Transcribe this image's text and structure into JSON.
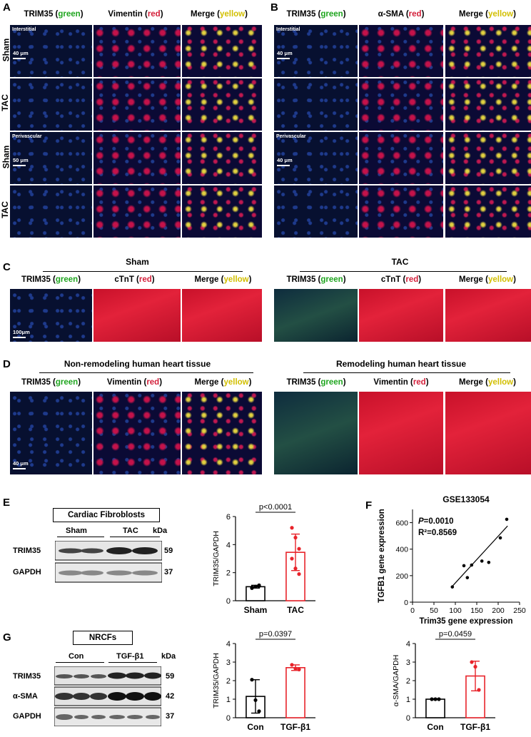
{
  "panels": {
    "A": {
      "letter": "A",
      "headers": [
        {
          "t1": "TRIM35 (",
          "t2": "green",
          "t3": ")"
        },
        {
          "t1": "Vimentin (",
          "t2": "red",
          "t3": ")"
        },
        {
          "t1": "Merge (",
          "t2": "yellow",
          "t3": ")"
        }
      ],
      "rows": [
        "Sham",
        "TAC",
        "Sham",
        "TAC"
      ],
      "inner": [
        "Interstitial",
        "Perivascular"
      ],
      "scales": [
        "40 μm",
        "50 μm"
      ]
    },
    "B": {
      "letter": "B",
      "headers": [
        {
          "t1": "TRIM35 (",
          "t2": "green",
          "t3": ")"
        },
        {
          "t1": "α-SMA (",
          "t2": "red",
          "t3": ")"
        },
        {
          "t1": "Merge (",
          "t2": "yellow",
          "t3": ")"
        }
      ],
      "inner": [
        "Interstitial",
        "Perivascular"
      ],
      "scales": [
        "40 μm",
        "40 μm"
      ]
    },
    "C": {
      "letter": "C",
      "groups": [
        "Sham",
        "TAC"
      ],
      "headers": [
        {
          "t1": "TRIM35 (",
          "t2": "green",
          "t3": ")"
        },
        {
          "t1": "cTnT (",
          "t2": "red",
          "t3": ")"
        },
        {
          "t1": "Merge (",
          "t2": "yellow",
          "t3": ")"
        }
      ],
      "scale": "100μm"
    },
    "D": {
      "letter": "D",
      "groups": [
        "Non-remodeling human heart tissue",
        "Remodeling human heart tissue"
      ],
      "headers": [
        {
          "t1": "TRIM35 (",
          "t2": "green",
          "t3": ")"
        },
        {
          "t1": "Vimentin (",
          "t2": "red",
          "t3": ")"
        },
        {
          "t1": "Merge (",
          "t2": "yellow",
          "t3": ")"
        }
      ],
      "scale": "40 μm"
    },
    "E": {
      "letter": "E",
      "box": "Cardiac Fibroblosts",
      "lanes": [
        "Sham",
        "TAC"
      ],
      "kda": "kDa",
      "bands": [
        {
          "name": "TRIM35",
          "kda": "59"
        },
        {
          "name": "GAPDH",
          "kda": "37"
        }
      ]
    },
    "F": {
      "letter": "F"
    },
    "G": {
      "letter": "G",
      "box": "NRCFs",
      "lanes": [
        "Con",
        "TGF-β1"
      ],
      "kda": "kDa",
      "bands": [
        {
          "name": "TRIM35",
          "kda": "59"
        },
        {
          "name": "α-SMA",
          "kda": "42"
        },
        {
          "name": "GAPDH",
          "kda": "37"
        }
      ]
    }
  },
  "chart_data": [
    {
      "type": "bar",
      "id": "E-bar",
      "categories": [
        "Sham",
        "TAC"
      ],
      "values": [
        1.0,
        3.45
      ],
      "errors": [
        0.1,
        1.3
      ],
      "points": [
        [
          0.95,
          1.0,
          1.05,
          0.9,
          1.0,
          1.1
        ],
        [
          5.2,
          4.5,
          3.7,
          3.0,
          2.3,
          1.9
        ]
      ],
      "ylabel": "TRIM35/GAPDH",
      "ylim": [
        0,
        6
      ],
      "yticks": [
        0,
        2,
        4,
        6
      ],
      "pvalue": "p<0.0001",
      "colors": [
        "#000000",
        "#e8232a"
      ]
    },
    {
      "type": "scatter",
      "id": "F-scatter",
      "title": "GSE133054",
      "xlabel": "Trim35 gene expression",
      "ylabel": "TGFB1 gene expression",
      "xlim": [
        0,
        250
      ],
      "ylim": [
        0,
        700
      ],
      "xticks": [
        0,
        50,
        100,
        150,
        200,
        250
      ],
      "yticks": [
        0,
        100,
        200,
        300,
        400,
        500,
        600,
        700
      ],
      "p_label": "P",
      "p_value": "=0.0010",
      "r2_label": "R²=0.8569",
      "points": [
        [
          93,
          115
        ],
        [
          120,
          275
        ],
        [
          128,
          185
        ],
        [
          138,
          280
        ],
        [
          162,
          310
        ],
        [
          178,
          300
        ],
        [
          205,
          485
        ],
        [
          220,
          625
        ]
      ],
      "fit": [
        [
          90,
          110
        ],
        [
          222,
          575
        ]
      ]
    },
    {
      "type": "bar",
      "id": "G-bar1",
      "categories": [
        "Con",
        "TGF-β1"
      ],
      "values": [
        1.15,
        2.7
      ],
      "errors": [
        0.9,
        0.15
      ],
      "points": [
        [
          2.05,
          0.95,
          0.35
        ],
        [
          2.85,
          2.65,
          2.6
        ]
      ],
      "ylabel": "TRIM35/GAPDH",
      "ylim": [
        0,
        4
      ],
      "yticks": [
        0,
        1,
        2,
        3,
        4
      ],
      "pvalue": "p=0.0397",
      "colors": [
        "#000000",
        "#e8232a"
      ]
    },
    {
      "type": "bar",
      "id": "G-bar2",
      "categories": [
        "Con",
        "TGF-β1"
      ],
      "values": [
        1.0,
        2.25
      ],
      "errors": [
        0.03,
        0.8
      ],
      "points": [
        [
          1.0,
          1.0,
          1.0
        ],
        [
          3.0,
          2.75,
          1.5
        ]
      ],
      "ylabel": "α-SMA/GAPDH",
      "ylim": [
        0,
        4
      ],
      "yticks": [
        0,
        1,
        2,
        3,
        4
      ],
      "pvalue": "p=0.0459",
      "colors": [
        "#000000",
        "#e8232a"
      ]
    }
  ]
}
